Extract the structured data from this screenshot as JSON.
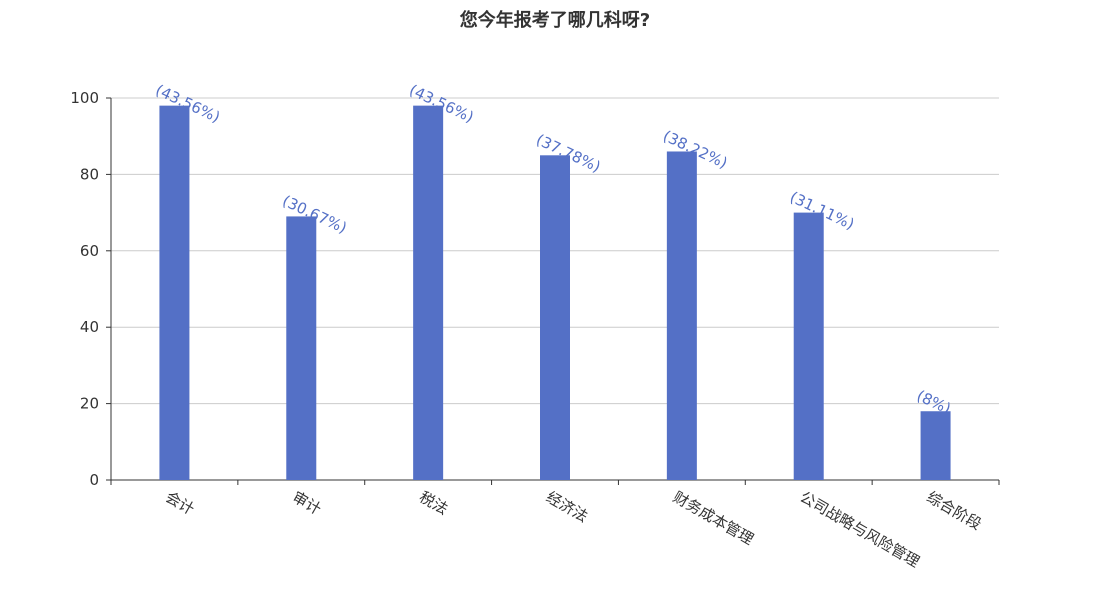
{
  "chart_data": {
    "type": "bar",
    "title": "您今年报考了哪几科呀?",
    "xlabel": "",
    "ylabel": "",
    "ylim": [
      0,
      100
    ],
    "yticks": [
      0,
      20,
      40,
      60,
      80,
      100
    ],
    "grid": true,
    "bar_color": "#5470c6",
    "categories": [
      "会计",
      "审计",
      "税法",
      "经济法",
      "财务成本管理",
      "公司战略与风险管理",
      "综合阶段"
    ],
    "values": [
      98,
      69,
      98,
      85,
      86,
      70,
      18
    ],
    "data_labels": [
      "(43.56%)",
      "(30.67%)",
      "(43.56%)",
      "(37.78%)",
      "(38.22%)",
      "(31.11%)",
      "(8%)"
    ]
  }
}
